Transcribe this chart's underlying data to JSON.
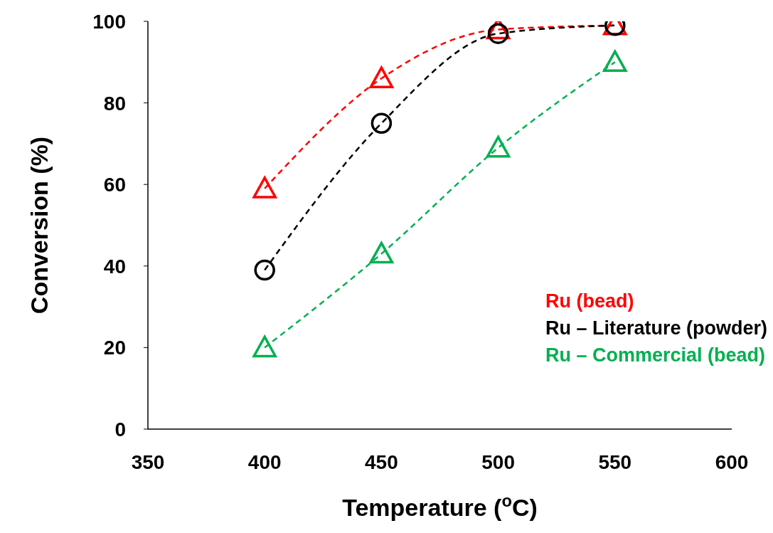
{
  "chart_data": {
    "type": "line",
    "xlabel": "Temperature ($^{o}$C)",
    "ylabel": "Conversion (%)",
    "x": [
      400,
      450,
      500,
      550
    ],
    "series": [
      {
        "name": "Ru (bead)",
        "color": "#ff0000",
        "values": [
          59,
          86,
          98,
          99
        ],
        "marker": "triangle"
      },
      {
        "name": "Ru – Literature (powder)",
        "color": "#000000",
        "values": [
          39,
          75,
          97,
          99
        ],
        "marker": "circle"
      },
      {
        "name": "Ru – Commercial (bead)",
        "color": "#00b050",
        "values": [
          20,
          43,
          69,
          90
        ],
        "marker": "triangle"
      }
    ],
    "xlim": [
      350,
      600
    ],
    "xticks": [
      350,
      400,
      450,
      500,
      550,
      600
    ],
    "ylim": [
      0,
      100
    ],
    "yticks": [
      0,
      20,
      40,
      60,
      80,
      100
    ],
    "grid": false,
    "legend": "bottom right",
    "line_style": "dashed"
  }
}
